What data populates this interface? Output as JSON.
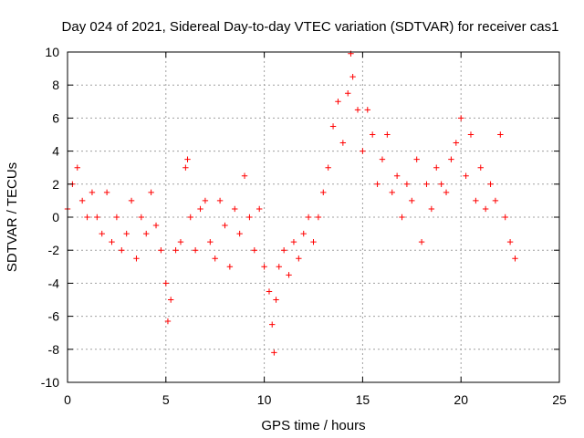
{
  "chart_data": {
    "type": "scatter",
    "title": "Day 024 of 2021, Sidereal Day-to-day VTEC variation (SDTVAR) for receiver cas1",
    "xlabel": "GPS time / hours",
    "ylabel": "SDTVAR / TECUs",
    "xlim": [
      0,
      25
    ],
    "ylim": [
      -10,
      10
    ],
    "xticks": [
      0,
      5,
      10,
      15,
      20,
      25
    ],
    "yticks": [
      -10,
      -8,
      -6,
      -4,
      -2,
      0,
      2,
      4,
      6,
      8,
      10
    ],
    "grid": true,
    "marker": "+",
    "series": [
      {
        "name": "SDTVAR",
        "color": "#ff0000",
        "x": [
          0.0,
          0.25,
          0.5,
          0.75,
          1.0,
          1.25,
          1.5,
          1.75,
          2.0,
          2.25,
          2.5,
          2.75,
          3.0,
          3.25,
          3.5,
          3.75,
          4.0,
          4.25,
          4.5,
          4.75,
          5.0,
          5.1,
          5.25,
          5.5,
          5.75,
          6.0,
          6.1,
          6.25,
          6.5,
          6.75,
          7.0,
          7.25,
          7.5,
          7.75,
          8.0,
          8.25,
          8.5,
          8.75,
          9.0,
          9.25,
          9.5,
          9.75,
          10.0,
          10.25,
          10.4,
          10.5,
          10.6,
          10.75,
          11.0,
          11.25,
          11.5,
          11.75,
          12.0,
          12.25,
          12.5,
          12.75,
          13.0,
          13.25,
          13.5,
          13.75,
          14.0,
          14.25,
          14.4,
          14.5,
          14.75,
          15.0,
          15.25,
          15.5,
          15.75,
          16.0,
          16.25,
          16.5,
          16.75,
          17.0,
          17.25,
          17.5,
          17.75,
          18.0,
          18.25,
          18.5,
          18.75,
          19.0,
          19.25,
          19.5,
          19.75,
          20.0,
          20.25,
          20.5,
          20.75,
          21.0,
          21.25,
          21.5,
          21.75,
          22.0,
          22.25,
          22.5,
          22.75
        ],
        "y": [
          0.5,
          2.0,
          3.0,
          1.0,
          0.0,
          1.5,
          0.0,
          -1.0,
          1.5,
          -1.5,
          0.0,
          -2.0,
          -1.0,
          1.0,
          -2.5,
          0.0,
          -1.0,
          1.5,
          -0.5,
          -2.0,
          -4.0,
          -6.3,
          -5.0,
          -2.0,
          -1.5,
          3.0,
          3.5,
          0.0,
          -2.0,
          0.5,
          1.0,
          -1.5,
          -2.5,
          1.0,
          -0.5,
          -3.0,
          0.5,
          -1.0,
          2.5,
          0.0,
          -2.0,
          0.5,
          -3.0,
          -4.5,
          -6.5,
          -8.2,
          -5.0,
          -3.0,
          -2.0,
          -3.5,
          -1.5,
          -2.5,
          -1.0,
          0.0,
          -1.5,
          0.0,
          1.5,
          3.0,
          5.5,
          7.0,
          4.5,
          7.5,
          9.9,
          8.5,
          6.5,
          4.0,
          6.5,
          5.0,
          2.0,
          3.5,
          5.0,
          1.5,
          2.5,
          0.0,
          2.0,
          1.0,
          3.5,
          -1.5,
          2.0,
          0.5,
          3.0,
          2.0,
          1.5,
          3.5,
          4.5,
          6.0,
          2.5,
          5.0,
          1.0,
          3.0,
          0.5,
          2.0,
          1.0,
          5.0,
          0.0,
          -1.5,
          -2.5
        ]
      }
    ]
  }
}
